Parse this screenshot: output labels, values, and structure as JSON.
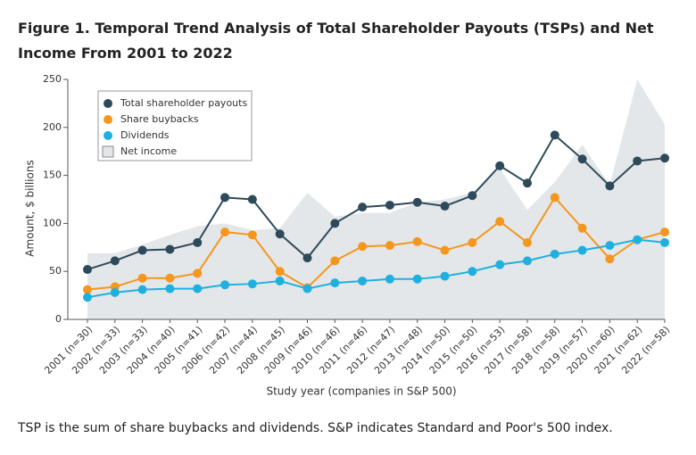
{
  "chart_data": {
    "type": "line",
    "title": "Figure 1.  Temporal Trend Analysis of Total Shareholder Payouts (TSPs) and Net Income From 2001 to 2022",
    "caption": "TSP is the sum of share buybacks and dividends. S&P indicates Standard and Poor's 500 index.",
    "x_label": "Study year (companies in S&P 500)",
    "y_label": "Amount, $ billions",
    "categories": [
      "2001 (n=30)",
      "2002 (n=33)",
      "2003 (n=33)",
      "2004 (n=40)",
      "2005 (n=41)",
      "2006 (n=42)",
      "2007 (n=44)",
      "2008 (n=45)",
      "2009 (n=46)",
      "2010 (n=46)",
      "2011 (n=46)",
      "2012 (n=47)",
      "2013 (n=48)",
      "2014 (n=50)",
      "2015 (n=50)",
      "2016 (n=53)",
      "2017 (n=58)",
      "2018 (n=58)",
      "2019 (n=57)",
      "2020 (n=60)",
      "2021 (n=62)",
      "2022 (n=58)"
    ],
    "series": [
      {
        "name": "Total shareholder payouts",
        "color": "#2e4a5a",
        "style": "line",
        "values": [
          52,
          61,
          72,
          73,
          80,
          127,
          125,
          89,
          64,
          100,
          117,
          119,
          122,
          118,
          129,
          160,
          142,
          192,
          167,
          139,
          165,
          168
        ]
      },
      {
        "name": "Share buybacks",
        "color": "#f5961e",
        "style": "line",
        "values": [
          31,
          34,
          43,
          43,
          48,
          91,
          88,
          50,
          33,
          61,
          76,
          77,
          81,
          72,
          80,
          102,
          80,
          127,
          95,
          63,
          83,
          91
        ]
      },
      {
        "name": "Dividends",
        "color": "#1fb0e0",
        "style": "line",
        "values": [
          23,
          28,
          31,
          32,
          32,
          36,
          37,
          40,
          32,
          38,
          40,
          42,
          42,
          45,
          50,
          57,
          61,
          68,
          72,
          77,
          83,
          80
        ]
      },
      {
        "name": "Net income",
        "color": "#e4e7e9",
        "style": "area",
        "values": [
          69,
          69,
          78,
          88,
          97,
          100,
          93,
          95,
          132,
          107,
          111,
          111,
          122,
          125,
          132,
          157,
          114,
          143,
          182,
          140,
          250,
          203
        ]
      }
    ],
    "ylim": [
      0,
      250
    ],
    "yticks": [
      0,
      50,
      100,
      150,
      200,
      250
    ],
    "legend": "upper left"
  }
}
